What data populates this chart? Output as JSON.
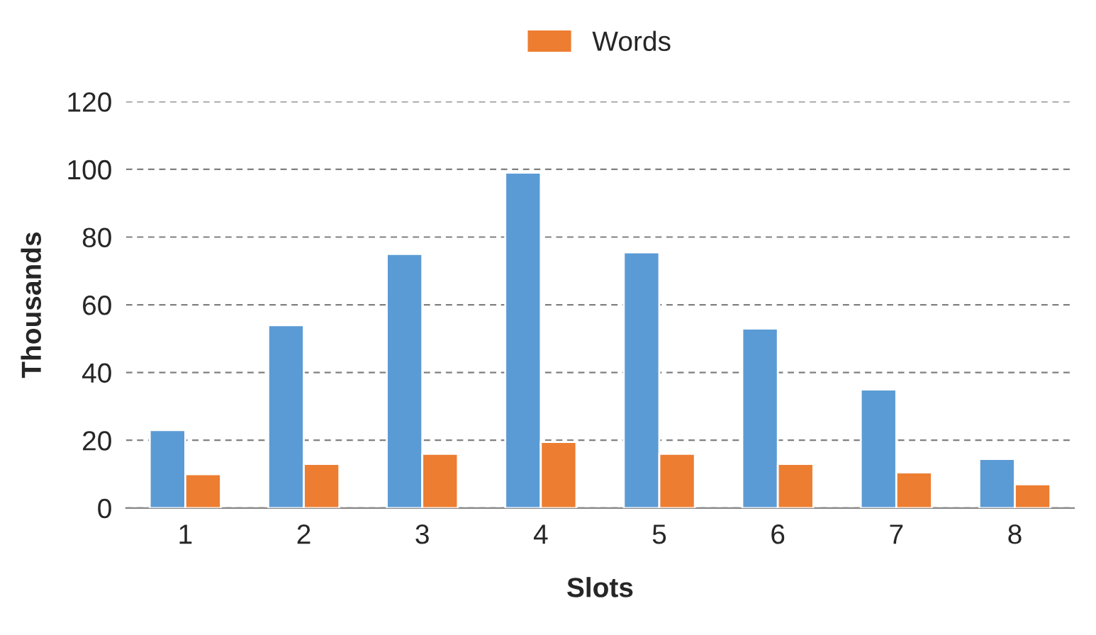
{
  "chart_data": {
    "type": "bar",
    "xlabel": "Slots",
    "ylabel": "Thousands",
    "categories": [
      "1",
      "2",
      "3",
      "4",
      "5",
      "6",
      "7",
      "8"
    ],
    "series": [
      {
        "color": "#5b9bd5",
        "values": [
          23,
          54,
          75,
          99,
          75.5,
          53,
          35,
          14.5
        ]
      },
      {
        "name": "Words",
        "color": "#ed7d31",
        "values": [
          10,
          13,
          16,
          19.5,
          16,
          13,
          10.5,
          7
        ]
      }
    ],
    "ylim": [
      0,
      120
    ],
    "yticks": [
      0,
      20,
      40,
      60,
      80,
      100,
      120
    ],
    "grid": "y",
    "legend": "top"
  }
}
